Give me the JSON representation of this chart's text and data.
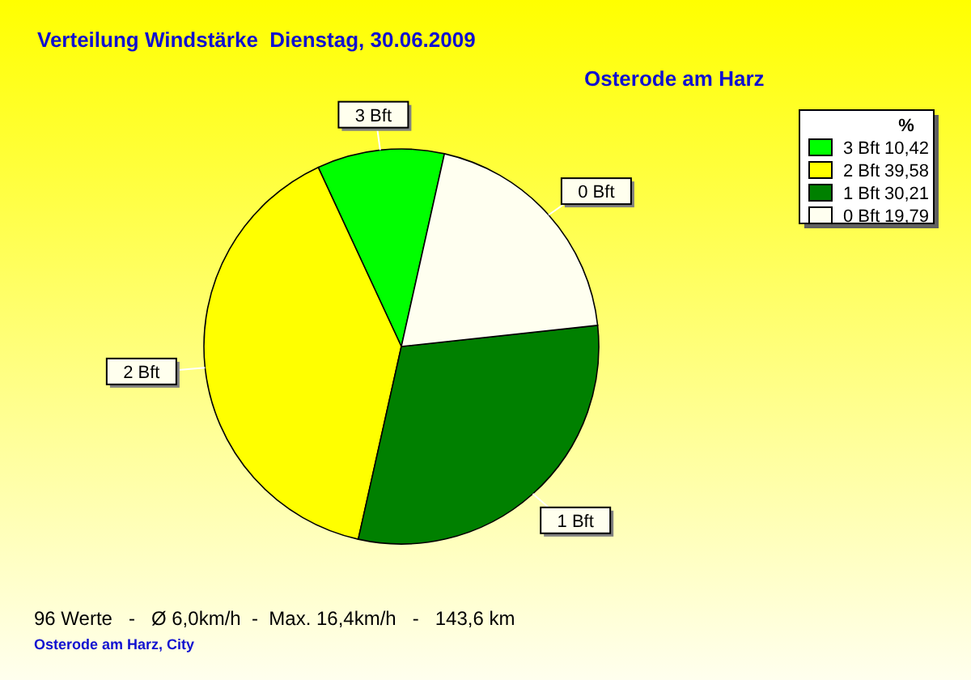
{
  "chart_data": {
    "type": "pie",
    "title": "Verteilung Windstärke  Dienstag, 30.06.2009",
    "subtitle": "Osterode am Harz",
    "legend_title": "%",
    "categories": [
      "3 Bft",
      "2 Bft",
      "1 Bft",
      "0 Bft"
    ],
    "values": [
      10.42,
      39.58,
      30.21,
      19.79
    ],
    "value_labels": [
      "10,42",
      "39,58",
      "30,21",
      "19,79"
    ],
    "colors": [
      "#00ff00",
      "#ffff00",
      "#008000",
      "#fffff0"
    ],
    "legend": "top right",
    "annotations": [
      "96 Werte   -   Ø 6,0km/h  -  Max. 16,4km/h   -   143,6 km",
      "Osterode am Harz, City"
    ]
  }
}
